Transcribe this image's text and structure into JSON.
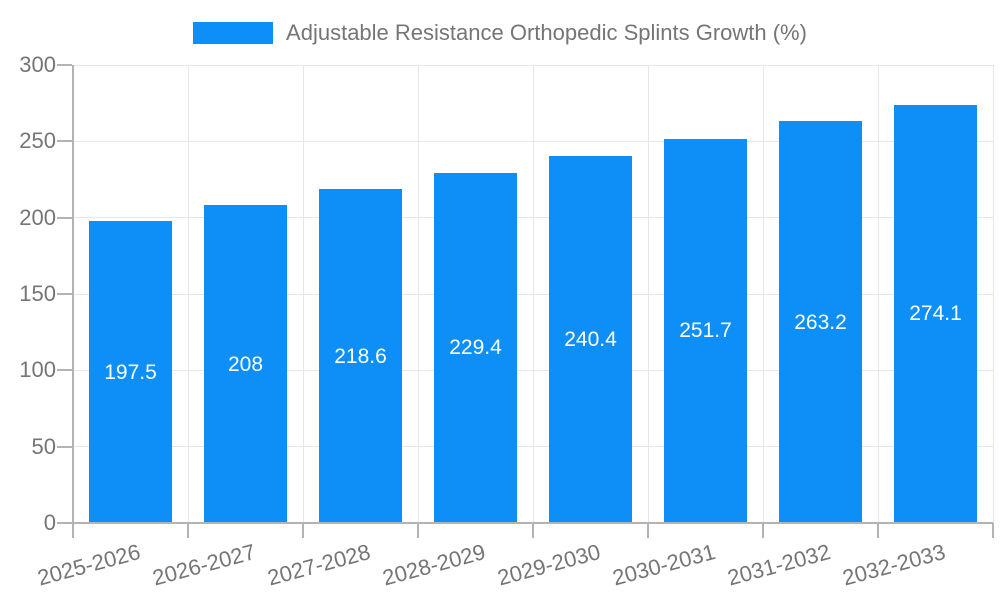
{
  "legend": {
    "label": "Adjustable Resistance Orthopedic Splints Growth (%)",
    "swatch_color": "#0e8ff7"
  },
  "chart_data": {
    "type": "bar",
    "title": "Adjustable Resistance Orthopedic Splints Growth (%)",
    "categories": [
      "2025-2026",
      "2026-2027",
      "2027-2028",
      "2028-2029",
      "2029-2030",
      "2030-2031",
      "2031-2032",
      "2032-2033"
    ],
    "values": [
      197.5,
      208,
      218.6,
      229.4,
      240.4,
      251.7,
      263.2,
      274.1
    ],
    "value_labels": [
      "197.5",
      "208",
      "218.6",
      "229.4",
      "240.4",
      "251.7",
      "263.2",
      "274.1"
    ],
    "series": [
      {
        "name": "Adjustable Resistance Orthopedic Splints Growth (%)",
        "values": [
          197.5,
          208,
          218.6,
          229.4,
          240.4,
          251.7,
          263.2,
          274.1
        ]
      }
    ],
    "xlabel": "",
    "ylabel": "",
    "ylim": [
      0,
      300
    ],
    "yticks": [
      0,
      50,
      100,
      150,
      200,
      250,
      300
    ],
    "grid": true,
    "legend_position": "top",
    "x_label_rotation_deg": -15,
    "bar_color": "#0e8ff7",
    "value_label_color": "#ffffff",
    "text_color": "#757575",
    "axis_color": "#b3b3b3",
    "gridline_color": "#e7e7e7"
  }
}
